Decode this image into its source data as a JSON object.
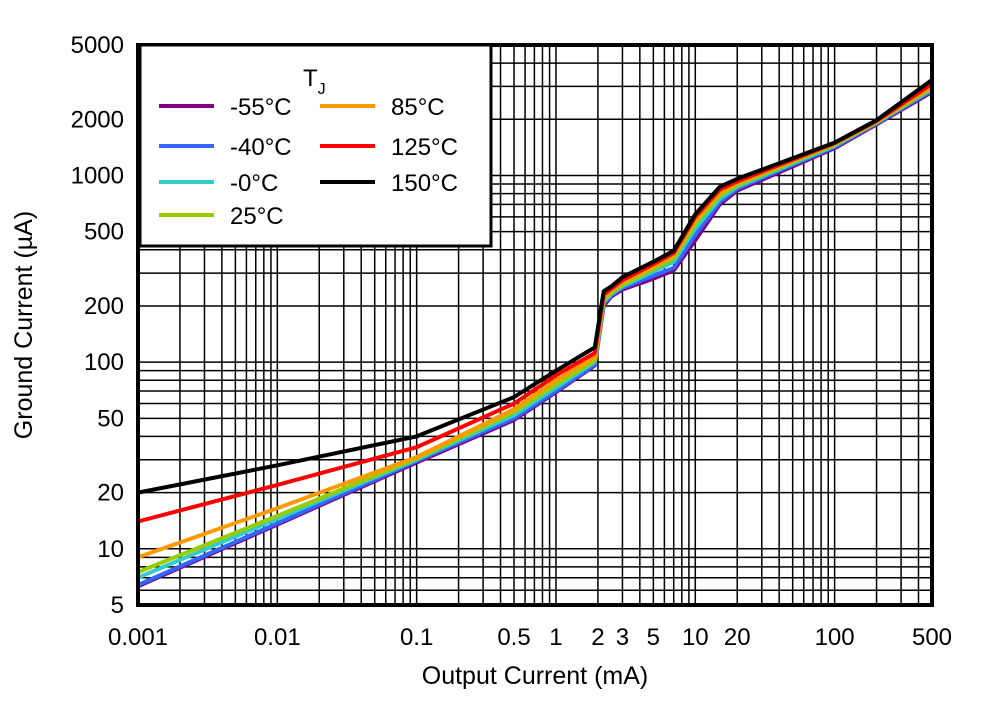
{
  "chart_data": {
    "type": "line",
    "xlabel": "Output Current (mA)",
    "ylabel": "Ground Current (µA)",
    "xscale": "log",
    "yscale": "log",
    "xlim": [
      0.001,
      500
    ],
    "ylim": [
      5,
      5000
    ],
    "grid": true,
    "x_ticks": [
      0.001,
      0.01,
      0.1,
      0.5,
      1,
      2,
      3,
      5,
      10,
      20,
      100,
      500
    ],
    "x_tick_labels": [
      "0.001",
      "0.01",
      "0.1",
      "0.5",
      "1",
      "2",
      "3",
      "5",
      "10",
      "20",
      "100",
      "500"
    ],
    "y_ticks": [
      5,
      10,
      20,
      50,
      100,
      200,
      500,
      1000,
      2000,
      5000
    ],
    "y_tick_labels": [
      "5",
      "10",
      "20",
      "50",
      "100",
      "200",
      "500",
      "1000",
      "2000",
      "5000"
    ],
    "legend": {
      "title": "T",
      "title_sub": "J",
      "placement": "top-left"
    },
    "x": [
      0.001,
      0.01,
      0.1,
      0.5,
      1,
      1.9,
      2.2,
      2.5,
      3,
      5,
      7,
      10,
      15,
      20,
      100,
      200,
      500
    ],
    "series": [
      {
        "name": "-55°C",
        "color": "#800080",
        "values": [
          6.3,
          13.5,
          29,
          49,
          69,
          96,
          200,
          225,
          245,
          280,
          310,
          450,
          700,
          830,
          1400,
          1880,
          2800
        ]
      },
      {
        "name": "-40°C",
        "color": "#3366ff",
        "values": [
          6.4,
          13.7,
          29.5,
          50,
          70,
          97,
          205,
          228,
          250,
          290,
          320,
          480,
          720,
          850,
          1420,
          1900,
          2850
        ]
      },
      {
        "name": "-0°C",
        "color": "#33cccc",
        "values": [
          7,
          14.5,
          30,
          52,
          73,
          100,
          210,
          232,
          255,
          305,
          345,
          520,
          750,
          870,
          1440,
          1920,
          2900
        ]
      },
      {
        "name": "25°C",
        "color": "#99cc00",
        "values": [
          7.5,
          15,
          30.5,
          54,
          76,
          102,
          215,
          236,
          260,
          315,
          360,
          550,
          780,
          890,
          1460,
          1930,
          2950
        ]
      },
      {
        "name": "85°C",
        "color": "#ff9900",
        "values": [
          9,
          16.5,
          31,
          56,
          80,
          106,
          222,
          242,
          268,
          325,
          375,
          580,
          810,
          910,
          1480,
          1950,
          3000
        ]
      },
      {
        "name": "125°C",
        "color": "#ff0000",
        "values": [
          14,
          22,
          35,
          60,
          85,
          112,
          230,
          248,
          275,
          335,
          385,
          600,
          840,
          930,
          1490,
          1960,
          3100
        ]
      },
      {
        "name": "150°C",
        "color": "#000000",
        "values": [
          20,
          28,
          40,
          65,
          90,
          120,
          240,
          255,
          285,
          345,
          395,
          620,
          870,
          960,
          1500,
          1980,
          3250
        ]
      }
    ]
  }
}
